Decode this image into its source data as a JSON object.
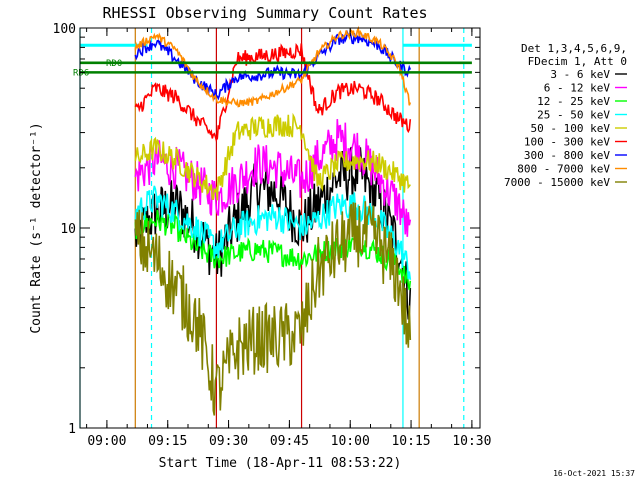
{
  "chart_data": {
    "type": "line",
    "title": "RHESSI Observing Summary Count Rates",
    "xlabel": "Start Time (18-Apr-11 08:53:22)",
    "ylabel": "Count Rate (s⁻¹ detector⁻¹)",
    "y_scale": "log",
    "ylim": [
      1,
      100
    ],
    "xlim": [
      "08:53:22",
      "10:32:00"
    ],
    "x_ticks": [
      "09:00",
      "09:15",
      "09:30",
      "09:45",
      "10:00",
      "10:15",
      "10:30"
    ],
    "y_ticks": [
      "1",
      "10",
      "100"
    ],
    "legend_header": [
      "Det 1,3,4,5,6,9,",
      "FDecim 1, Att 0"
    ],
    "legend_position": "right",
    "timestamp": "16-Oct-2021 15:37",
    "annotations": [
      {
        "label": "RD0",
        "y": 67,
        "x_start": "08:53:22",
        "x_end": "10:30:00",
        "color": "#008000"
      },
      {
        "label": "RD6",
        "y": 60,
        "x_start": "08:53:22",
        "x_end": "10:30:00",
        "color": "#008000"
      }
    ],
    "cyan_bar": {
      "y": 82,
      "segments": [
        [
          "08:53:22",
          "09:10:00"
        ],
        [
          "10:13:00",
          "10:30:00"
        ]
      ],
      "color": "#00ffff"
    },
    "vertical_markers": [
      {
        "time": "08:53:22",
        "color": "#00ffff",
        "style": "solid"
      },
      {
        "time": "09:07:00",
        "color": "#cc7a00",
        "style": "solid"
      },
      {
        "time": "09:11:00",
        "color": "#00ffff",
        "style": "dashed"
      },
      {
        "time": "09:27:00",
        "color": "#cc0000",
        "style": "solid"
      },
      {
        "time": "09:48:00",
        "color": "#cc0000",
        "style": "solid"
      },
      {
        "time": "10:13:00",
        "color": "#00ffff",
        "style": "solid"
      },
      {
        "time": "10:17:00",
        "color": "#cc7a00",
        "style": "solid"
      },
      {
        "time": "10:28:00",
        "color": "#00ffff",
        "style": "dashed"
      }
    ],
    "data_window": [
      "09:07:00",
      "10:17:00"
    ],
    "series": [
      {
        "name": "3 - 6 keV",
        "color": "#000000",
        "points": [
          [
            "09:07:00",
            9
          ],
          [
            "09:12:00",
            12
          ],
          [
            "09:17:00",
            13
          ],
          [
            "09:22:00",
            10
          ],
          [
            "09:27:00",
            7
          ],
          [
            "09:32:00",
            11
          ],
          [
            "09:37:00",
            16
          ],
          [
            "09:42:00",
            15
          ],
          [
            "09:48:00",
            10
          ],
          [
            "09:52:00",
            13
          ],
          [
            "09:57:00",
            18
          ],
          [
            "10:02:00",
            19
          ],
          [
            "10:07:00",
            14
          ],
          [
            "10:12:00",
            8
          ],
          [
            "10:15:00",
            4
          ]
        ]
      },
      {
        "name": "6 - 12 keV",
        "color": "#ff00ff",
        "points": [
          [
            "09:07:00",
            18
          ],
          [
            "09:12:00",
            22
          ],
          [
            "09:17:00",
            20
          ],
          [
            "09:22:00",
            17
          ],
          [
            "09:27:00",
            14
          ],
          [
            "09:32:00",
            17
          ],
          [
            "09:37:00",
            21
          ],
          [
            "09:42:00",
            20
          ],
          [
            "09:48:00",
            17
          ],
          [
            "09:52:00",
            22
          ],
          [
            "09:57:00",
            28
          ],
          [
            "10:02:00",
            25
          ],
          [
            "10:07:00",
            18
          ],
          [
            "10:12:00",
            13
          ],
          [
            "10:15:00",
            9
          ]
        ]
      },
      {
        "name": "12 - 25 keV",
        "color": "#00ff00",
        "points": [
          [
            "09:07:00",
            10
          ],
          [
            "09:12:00",
            11
          ],
          [
            "09:17:00",
            10
          ],
          [
            "09:22:00",
            8
          ],
          [
            "09:27:00",
            7
          ],
          [
            "09:32:00",
            7.5
          ],
          [
            "09:37:00",
            7.8
          ],
          [
            "09:42:00",
            7.5
          ],
          [
            "09:48:00",
            7
          ],
          [
            "09:52:00",
            7.5
          ],
          [
            "09:57:00",
            8
          ],
          [
            "10:02:00",
            8.5
          ],
          [
            "10:07:00",
            7.5
          ],
          [
            "10:12:00",
            6.5
          ],
          [
            "10:15:00",
            5
          ]
        ]
      },
      {
        "name": "25 - 50 keV",
        "color": "#00ffff",
        "points": [
          [
            "09:07:00",
            12
          ],
          [
            "09:12:00",
            14
          ],
          [
            "09:17:00",
            12
          ],
          [
            "09:22:00",
            10
          ],
          [
            "09:27:00",
            8
          ],
          [
            "09:32:00",
            10
          ],
          [
            "09:37:00",
            11
          ],
          [
            "09:42:00",
            11.5
          ],
          [
            "09:48:00",
            10
          ],
          [
            "09:52:00",
            11
          ],
          [
            "09:57:00",
            13
          ],
          [
            "10:02:00",
            13
          ],
          [
            "10:07:00",
            11
          ],
          [
            "10:12:00",
            8
          ],
          [
            "10:15:00",
            6
          ]
        ]
      },
      {
        "name": "50 - 100 keV",
        "color": "#cccc00",
        "points": [
          [
            "09:07:00",
            22
          ],
          [
            "09:12:00",
            25
          ],
          [
            "09:17:00",
            22
          ],
          [
            "09:22:00",
            18
          ],
          [
            "09:27:00",
            15
          ],
          [
            "09:32:00",
            30
          ],
          [
            "09:37:00",
            32
          ],
          [
            "09:42:00",
            33
          ],
          [
            "09:48:00",
            32
          ],
          [
            "09:52:00",
            17
          ],
          [
            "09:57:00",
            21
          ],
          [
            "10:02:00",
            22
          ],
          [
            "10:07:00",
            21
          ],
          [
            "10:12:00",
            18
          ],
          [
            "10:15:00",
            16
          ]
        ]
      },
      {
        "name": "100 - 300 keV",
        "color": "#ff0000",
        "points": [
          [
            "09:07:00",
            38
          ],
          [
            "09:12:00",
            50
          ],
          [
            "09:17:00",
            45
          ],
          [
            "09:22:00",
            35
          ],
          [
            "09:27:00",
            28
          ],
          [
            "09:32:00",
            70
          ],
          [
            "09:37:00",
            72
          ],
          [
            "09:42:00",
            74
          ],
          [
            "09:48:00",
            78
          ],
          [
            "09:52:00",
            38
          ],
          [
            "09:57:00",
            48
          ],
          [
            "10:02:00",
            50
          ],
          [
            "10:07:00",
            44
          ],
          [
            "10:12:00",
            35
          ],
          [
            "10:15:00",
            32
          ]
        ]
      },
      {
        "name": "300 - 800 keV",
        "color": "#0000ff",
        "points": [
          [
            "09:07:00",
            75
          ],
          [
            "09:12:00",
            85
          ],
          [
            "09:17:00",
            70
          ],
          [
            "09:22:00",
            55
          ],
          [
            "09:27:00",
            46
          ],
          [
            "09:32:00",
            57
          ],
          [
            "09:37:00",
            58
          ],
          [
            "09:42:00",
            60
          ],
          [
            "09:48:00",
            58
          ],
          [
            "09:52:00",
            72
          ],
          [
            "09:57:00",
            88
          ],
          [
            "10:02:00",
            90
          ],
          [
            "10:07:00",
            82
          ],
          [
            "10:12:00",
            65
          ],
          [
            "10:15:00",
            60
          ]
        ]
      },
      {
        "name": "800 - 7000 keV",
        "color": "#ff8c00",
        "points": [
          [
            "09:07:00",
            80
          ],
          [
            "09:12:00",
            92
          ],
          [
            "09:17:00",
            78
          ],
          [
            "09:22:00",
            55
          ],
          [
            "09:27:00",
            44
          ],
          [
            "09:32:00",
            42
          ],
          [
            "09:37:00",
            43
          ],
          [
            "09:42:00",
            48
          ],
          [
            "09:48:00",
            55
          ],
          [
            "09:52:00",
            75
          ],
          [
            "09:57:00",
            92
          ],
          [
            "10:02:00",
            95
          ],
          [
            "10:07:00",
            85
          ],
          [
            "10:12:00",
            65
          ],
          [
            "10:15:00",
            40
          ]
        ]
      },
      {
        "name": "7000 - 15000 keV",
        "color": "#808000",
        "points": [
          [
            "09:07:00",
            9
          ],
          [
            "09:12:00",
            7
          ],
          [
            "09:17:00",
            5
          ],
          [
            "09:22:00",
            3.5
          ],
          [
            "09:27:00",
            1.5
          ],
          [
            "09:32:00",
            2.5
          ],
          [
            "09:37:00",
            2.8
          ],
          [
            "09:42:00",
            2.8
          ],
          [
            "09:48:00",
            3
          ],
          [
            "09:52:00",
            6
          ],
          [
            "09:57:00",
            8
          ],
          [
            "10:02:00",
            9.5
          ],
          [
            "10:07:00",
            8.5
          ],
          [
            "10:12:00",
            5.5
          ],
          [
            "10:15:00",
            2.5
          ]
        ]
      }
    ]
  }
}
